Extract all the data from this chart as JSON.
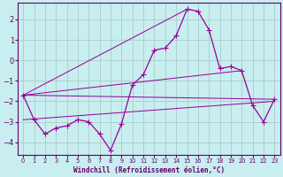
{
  "xlabel": "Windchill (Refroidissement éolien,°C)",
  "bg_color": "#c8eef0",
  "line_color": "#990099",
  "grid_color": "#aacccc",
  "axis_color": "#660066",
  "xlim": [
    -0.5,
    23.5
  ],
  "ylim": [
    -4.6,
    2.8
  ],
  "xticks": [
    0,
    1,
    2,
    3,
    4,
    5,
    6,
    7,
    8,
    9,
    10,
    11,
    12,
    13,
    14,
    15,
    16,
    17,
    18,
    19,
    20,
    21,
    22,
    23
  ],
  "yticks": [
    -4,
    -3,
    -2,
    -1,
    0,
    1,
    2
  ],
  "main_x": [
    0,
    1,
    2,
    3,
    4,
    5,
    6,
    7,
    8,
    9,
    10,
    11,
    12,
    13,
    14,
    15,
    16,
    17,
    18,
    19,
    20,
    21,
    22,
    23
  ],
  "main_y": [
    -1.7,
    -2.9,
    -3.6,
    -3.3,
    -3.2,
    -2.9,
    -3.0,
    -3.6,
    -4.4,
    -3.1,
    -1.2,
    -0.7,
    0.5,
    0.6,
    1.2,
    2.5,
    2.4,
    1.5,
    -0.4,
    -0.3,
    -0.5,
    -2.2,
    -3.0,
    -1.9
  ],
  "fan_lines": [
    {
      "x": [
        0,
        15
      ],
      "y": [
        -1.7,
        2.5
      ]
    },
    {
      "x": [
        0,
        20
      ],
      "y": [
        -1.7,
        -0.5
      ]
    },
    {
      "x": [
        0,
        23
      ],
      "y": [
        -1.7,
        -1.9
      ]
    },
    {
      "x": [
        0,
        23
      ],
      "y": [
        -2.9,
        -2.0
      ]
    }
  ],
  "line_width": 0.9,
  "marker_size": 4
}
